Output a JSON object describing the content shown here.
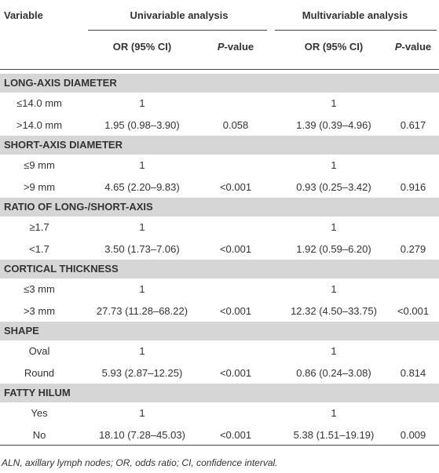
{
  "header": {
    "variable": "Variable",
    "univariable": "Univariable analysis",
    "multivariable": "Multivariable analysis",
    "uni_or": "OR (95% CI)",
    "uni_p": "P-value",
    "multi_or": "OR (95% CI)",
    "multi_p": "P-value"
  },
  "sections": [
    {
      "title": "LONG-AXIS DIAMETER",
      "rows": [
        {
          "label": "≤14.0 mm",
          "uni_or": "1",
          "multi_or": "1"
        },
        {
          "label": ">14.0 mm",
          "uni_or": "1.95 (0.98–3.90)",
          "uni_p": "0.058",
          "multi_or": "1.39 (0.39–4.96)",
          "multi_p": "0.617"
        }
      ]
    },
    {
      "title": "SHORT-AXIS DIAMETER",
      "rows": [
        {
          "label": "≤9 mm",
          "uni_or": "1",
          "multi_or": "1"
        },
        {
          "label": ">9 mm",
          "uni_or": "4.65 (2.20–9.83)",
          "uni_p": "<0.001",
          "multi_or": "0.93 (0.25–3.42)",
          "multi_p": "0.916"
        }
      ]
    },
    {
      "title": "RATIO OF LONG-/SHORT-AXIS",
      "rows": [
        {
          "label": "≥1.7",
          "uni_or": "1",
          "multi_or": "1"
        },
        {
          "label": "<1.7",
          "uni_or": "3.50 (1.73–7.06)",
          "uni_p": "<0.001",
          "multi_or": "1.92 (0.59–6.20)",
          "multi_p": "0.279"
        }
      ]
    },
    {
      "title": "CORTICAL THICKNESS",
      "rows": [
        {
          "label": "≤3 mm",
          "uni_or": "1",
          "multi_or": "1"
        },
        {
          "label": ">3 mm",
          "uni_or": "27.73 (11.28–68.22)",
          "uni_p": "<0.001",
          "multi_or": "12.32 (4.50–33.75)",
          "multi_p": "<0.001"
        }
      ]
    },
    {
      "title": "SHAPE",
      "rows": [
        {
          "label": "Oval",
          "uni_or": "1",
          "multi_or": "1"
        },
        {
          "label": "Round",
          "uni_or": "5.93 (2.87–12.25)",
          "uni_p": "<0.001",
          "multi_or": "0.86 (0.24–3.08)",
          "multi_p": "0.814"
        }
      ]
    },
    {
      "title": "FATTY HILUM",
      "rows": [
        {
          "label": "Yes",
          "uni_or": "1",
          "multi_or": "1"
        },
        {
          "label": "No",
          "uni_or": "18.10 (7.28–45.03)",
          "uni_p": "<0.001",
          "multi_or": "5.38 (1.51–19.19)",
          "multi_p": "0.009"
        }
      ]
    }
  ],
  "footnote": "ALN, axillary lymph nodes; OR, odds ratio; CI, confidence interval."
}
